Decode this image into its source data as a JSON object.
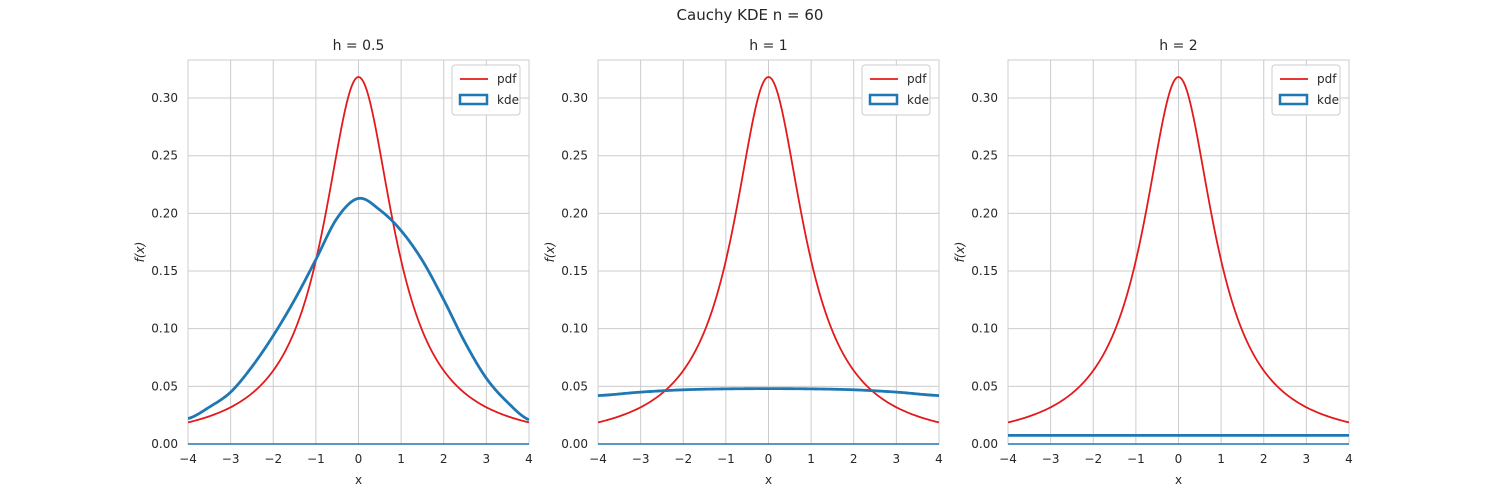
{
  "suptitle": "Cauchy KDE n = 60",
  "colors": {
    "pdf": "#e31a1c",
    "kde": "#1f77b4",
    "grid": "#cccccc",
    "axes_edge": "#cccccc",
    "background": "#ffffff"
  },
  "chart_data": [
    {
      "type": "line",
      "title": "h = 0.5",
      "xlabel": "x",
      "ylabel": "f(x)",
      "xlim": [
        -4,
        4
      ],
      "ylim": [
        0,
        0.333
      ],
      "xticks": [
        -4,
        -3,
        -2,
        -1,
        0,
        1,
        2,
        3,
        4
      ],
      "yticks": [
        "0.00",
        "0.05",
        "0.10",
        "0.15",
        "0.20",
        "0.25",
        "0.30"
      ],
      "grid": true,
      "legend": {
        "position": "upper right",
        "entries": [
          "pdf",
          "kde"
        ]
      },
      "series": [
        {
          "name": "pdf",
          "kind": "cauchy_pdf",
          "color": "#e31a1c",
          "x": [
            -4,
            -3,
            -2,
            -1.5,
            -1,
            -0.5,
            0,
            0.5,
            1,
            1.5,
            2,
            3,
            4
          ],
          "y": [
            0.0187,
            0.0318,
            0.0637,
            0.0979,
            0.1592,
            0.2546,
            0.3183,
            0.2546,
            0.1592,
            0.0979,
            0.0637,
            0.0318,
            0.0187
          ]
        },
        {
          "name": "kde",
          "kind": "curve",
          "color": "#1f77b4",
          "x": [
            -4,
            -3.5,
            -3,
            -2.5,
            -2,
            -1.5,
            -1,
            -0.5,
            0,
            0.5,
            1,
            1.5,
            2,
            2.5,
            3,
            3.5,
            4
          ],
          "y": [
            0.022,
            0.032,
            0.045,
            0.067,
            0.094,
            0.125,
            0.16,
            0.196,
            0.213,
            0.203,
            0.185,
            0.159,
            0.125,
            0.088,
            0.057,
            0.036,
            0.021
          ]
        }
      ]
    },
    {
      "type": "line",
      "title": "h = 1",
      "xlabel": "x",
      "ylabel": "f(x)",
      "xlim": [
        -4,
        4
      ],
      "ylim": [
        0,
        0.333
      ],
      "xticks": [
        -4,
        -3,
        -2,
        -1,
        0,
        1,
        2,
        3,
        4
      ],
      "yticks": [
        "0.00",
        "0.05",
        "0.10",
        "0.15",
        "0.20",
        "0.25",
        "0.30"
      ],
      "grid": true,
      "legend": {
        "position": "upper right",
        "entries": [
          "pdf",
          "kde"
        ]
      },
      "series": [
        {
          "name": "pdf",
          "kind": "cauchy_pdf",
          "color": "#e31a1c",
          "x": [
            -4,
            -3,
            -2,
            -1.5,
            -1,
            -0.5,
            0,
            0.5,
            1,
            1.5,
            2,
            3,
            4
          ],
          "y": [
            0.0187,
            0.0318,
            0.0637,
            0.0979,
            0.1592,
            0.2546,
            0.3183,
            0.2546,
            0.1592,
            0.0979,
            0.0637,
            0.0318,
            0.0187
          ]
        },
        {
          "name": "kde",
          "kind": "curve",
          "color": "#1f77b4",
          "x": [
            -4,
            -3,
            -2,
            -1,
            0,
            1,
            2,
            3,
            4
          ],
          "y": [
            0.042,
            0.045,
            0.047,
            0.0478,
            0.048,
            0.0478,
            0.047,
            0.045,
            0.042
          ]
        }
      ]
    },
    {
      "type": "line",
      "title": "h = 2",
      "xlabel": "x",
      "ylabel": "f(x)",
      "xlim": [
        -4,
        4
      ],
      "ylim": [
        0,
        0.333
      ],
      "xticks": [
        -4,
        -3,
        -2,
        -1,
        0,
        1,
        2,
        3,
        4
      ],
      "yticks": [
        "0.00",
        "0.05",
        "0.10",
        "0.15",
        "0.20",
        "0.25",
        "0.30"
      ],
      "grid": true,
      "legend": {
        "position": "upper right",
        "entries": [
          "pdf",
          "kde"
        ]
      },
      "series": [
        {
          "name": "pdf",
          "kind": "cauchy_pdf",
          "color": "#e31a1c",
          "x": [
            -4,
            -3,
            -2,
            -1.5,
            -1,
            -0.5,
            0,
            0.5,
            1,
            1.5,
            2,
            3,
            4
          ],
          "y": [
            0.0187,
            0.0318,
            0.0637,
            0.0979,
            0.1592,
            0.2546,
            0.3183,
            0.2546,
            0.1592,
            0.0979,
            0.0637,
            0.0318,
            0.0187
          ]
        },
        {
          "name": "kde",
          "kind": "curve",
          "color": "#1f77b4",
          "x": [
            -4,
            4
          ],
          "y": [
            0.0075,
            0.0075
          ]
        }
      ]
    }
  ]
}
